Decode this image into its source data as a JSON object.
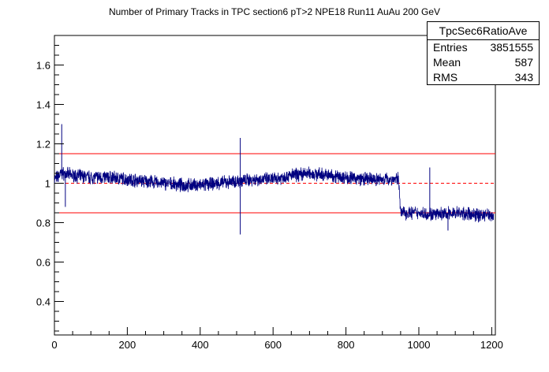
{
  "chart_data": {
    "type": "line",
    "title": "Number of Primary Tracks in TPC section6 pT>2 NPE18 Run11 AuAu 200 GeV",
    "xlabel": "",
    "ylabel": "",
    "xlim": [
      0,
      1210
    ],
    "ylim": [
      0.23,
      1.75
    ],
    "x_ticks": [
      0,
      200,
      400,
      600,
      800,
      1000,
      1200
    ],
    "y_ticks": [
      0.4,
      0.6,
      0.8,
      1,
      1.2,
      1.4,
      1.6
    ],
    "x_tick_labels": [
      "0",
      "200",
      "400",
      "600",
      "800",
      "1000",
      "1200"
    ],
    "y_tick_labels": [
      "0.4",
      "0.6",
      "0.8",
      "1",
      "1.2",
      "1.4",
      "1.6"
    ],
    "grid": false,
    "series": [
      {
        "color": "#000080",
        "profile": [
          [
            0,
            1.02
          ],
          [
            20,
            1.05
          ],
          [
            50,
            1.04
          ],
          [
            100,
            1.03
          ],
          [
            150,
            1.03
          ],
          [
            200,
            1.02
          ],
          [
            250,
            1.01
          ],
          [
            300,
            1.0
          ],
          [
            350,
            0.99
          ],
          [
            400,
            0.99
          ],
          [
            450,
            1.0
          ],
          [
            500,
            1.01
          ],
          [
            550,
            1.02
          ],
          [
            600,
            1.02
          ],
          [
            650,
            1.04
          ],
          [
            700,
            1.05
          ],
          [
            750,
            1.04
          ],
          [
            800,
            1.03
          ],
          [
            850,
            1.02
          ],
          [
            900,
            1.02
          ],
          [
            945,
            1.02
          ],
          [
            950,
            0.85
          ],
          [
            1000,
            0.85
          ],
          [
            1050,
            0.84
          ],
          [
            1100,
            0.85
          ],
          [
            1150,
            0.84
          ],
          [
            1205,
            0.84
          ]
        ],
        "spikes": [
          [
            20,
            1.3
          ],
          [
            510,
            0.74
          ],
          [
            510,
            1.23
          ],
          [
            1030,
            1.08
          ],
          [
            1080,
            0.76
          ],
          [
            30,
            0.88
          ]
        ]
      }
    ],
    "reference_lines": [
      {
        "y": 1.15,
        "style": "solid",
        "color": "#ff0000"
      },
      {
        "y": 1.0,
        "style": "dashed",
        "color": "#ff0000"
      },
      {
        "y": 0.85,
        "style": "solid",
        "color": "#ff0000"
      }
    ]
  },
  "stats_box": {
    "name": "TpcSec6RatioAve",
    "rows": [
      {
        "label": "Entries",
        "value": "3851555"
      },
      {
        "label": "Mean",
        "value": "587"
      },
      {
        "label": "RMS",
        "value": "343"
      }
    ]
  }
}
